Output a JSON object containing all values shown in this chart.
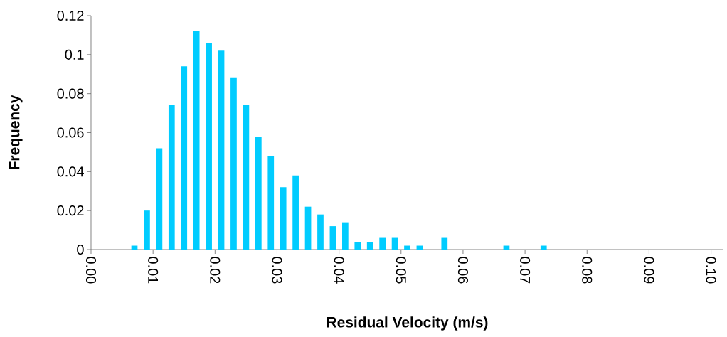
{
  "chart_data": {
    "type": "histogram",
    "xlabel": "Residual Velocity (m/s)",
    "ylabel": "Frequency",
    "color": "#00ccff",
    "bins": [
      0.006,
      0.008,
      0.01,
      0.012,
      0.014,
      0.016,
      0.018,
      0.02,
      0.022,
      0.024,
      0.026,
      0.028,
      0.03,
      0.032,
      0.034,
      0.036,
      0.038,
      0.04,
      0.042,
      0.044,
      0.046,
      0.048,
      0.05,
      0.052,
      0.054,
      0.056,
      0.058,
      0.06,
      0.062,
      0.064,
      0.066,
      0.068,
      0.07,
      0.072,
      0.074
    ],
    "values": [
      0.002,
      0.02,
      0.052,
      0.074,
      0.094,
      0.112,
      0.106,
      0.102,
      0.088,
      0.074,
      0.058,
      0.048,
      0.032,
      0.038,
      0.022,
      0.018,
      0.012,
      0.014,
      0.004,
      0.004,
      0.006,
      0.006,
      0.002,
      0.002,
      0,
      0.006,
      0,
      0,
      0,
      0,
      0.002,
      0,
      0,
      0.002
    ],
    "xlim": [
      0,
      0.102
    ],
    "ylim": [
      0,
      0.12
    ],
    "xticks": [
      {
        "value": 0,
        "label": "0.00"
      },
      0.01,
      0.02,
      0.03,
      0.04,
      0.05,
      0.06,
      0.07,
      0.08,
      0.09,
      {
        "value": 0.1,
        "label": "0.10"
      }
    ],
    "yticks": [
      0,
      0.02,
      0.04,
      0.06,
      0.08,
      0.1,
      0.12
    ],
    "grid": false
  }
}
